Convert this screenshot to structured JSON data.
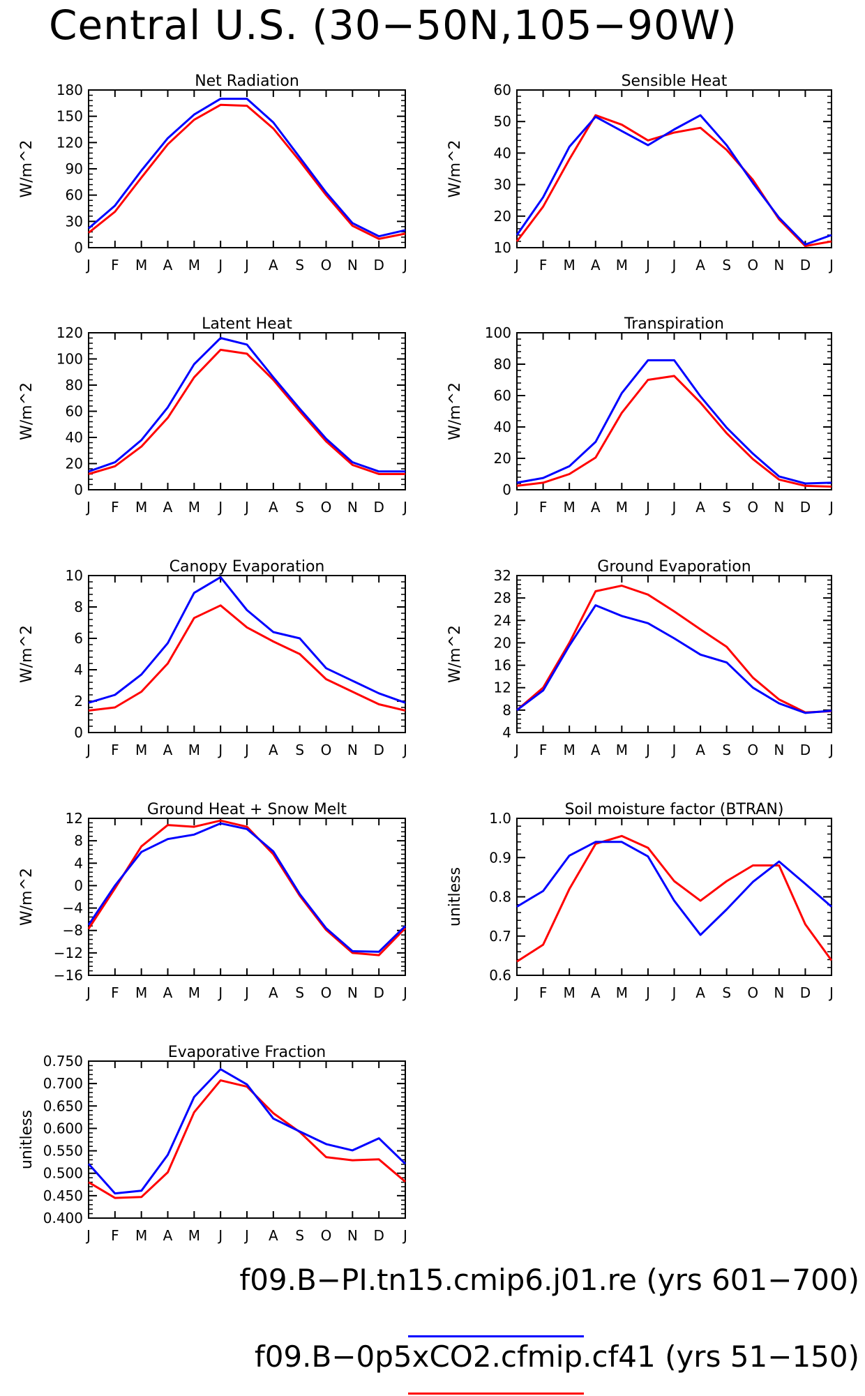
{
  "title": "Central U.S. (30−50N,105−90W)",
  "months": [
    "J",
    "F",
    "M",
    "A",
    "M",
    "J",
    "J",
    "A",
    "S",
    "O",
    "N",
    "D",
    "J"
  ],
  "colors": {
    "blue": "#0000ff",
    "red": "#ff0000"
  },
  "legend": [
    {
      "label": "f09.B−PI.tn15.cmip6.j01.re (yrs 601−700)",
      "color": "#0000ff"
    },
    {
      "label": "f09.B−0p5xCO2.cfmip.cf41 (yrs 51−150)",
      "color": "#ff0000"
    }
  ],
  "chart_data": [
    {
      "type": "line",
      "title": "Net Radiation",
      "ylabel": "W/m^2",
      "ylim": [
        0,
        180
      ],
      "yticks": [
        0,
        30,
        60,
        90,
        120,
        150,
        180
      ],
      "yticklabels": [
        "0",
        "30",
        "60",
        "90",
        "120",
        "150",
        "180"
      ],
      "x": [
        "J",
        "F",
        "M",
        "A",
        "M",
        "J",
        "J",
        "A",
        "S",
        "O",
        "N",
        "D",
        "J"
      ],
      "series": [
        {
          "color": "#0000ff",
          "values": [
            22,
            48,
            88,
            125,
            152,
            170,
            170,
            143,
            103,
            63,
            28,
            13,
            20
          ]
        },
        {
          "color": "#ff0000",
          "values": [
            17,
            41,
            80,
            118,
            146,
            163,
            162,
            136,
            99,
            60,
            25,
            10,
            16
          ]
        }
      ]
    },
    {
      "type": "line",
      "title": "Sensible Heat",
      "ylabel": "W/m^2",
      "ylim": [
        10,
        60
      ],
      "yticks": [
        10,
        20,
        30,
        40,
        50,
        60
      ],
      "yticklabels": [
        "10",
        "20",
        "30",
        "40",
        "50",
        "60"
      ],
      "x": [
        "J",
        "F",
        "M",
        "A",
        "M",
        "J",
        "J",
        "A",
        "S",
        "O",
        "N",
        "D",
        "J"
      ],
      "series": [
        {
          "color": "#0000ff",
          "values": [
            14,
            26,
            42,
            51.5,
            47,
            42.5,
            47.5,
            52,
            42.5,
            30.5,
            19.5,
            11,
            14
          ]
        },
        {
          "color": "#ff0000",
          "values": [
            12,
            23,
            38,
            52,
            49,
            44,
            46.5,
            48,
            41,
            31.5,
            19,
            10.5,
            12
          ]
        }
      ]
    },
    {
      "type": "line",
      "title": "Latent Heat",
      "ylabel": "W/m^2",
      "ylim": [
        0,
        120
      ],
      "yticks": [
        0,
        20,
        40,
        60,
        80,
        100,
        120
      ],
      "yticklabels": [
        "0",
        "20",
        "40",
        "60",
        "80",
        "100",
        "120"
      ],
      "x": [
        "J",
        "F",
        "M",
        "A",
        "M",
        "J",
        "J",
        "A",
        "S",
        "O",
        "N",
        "D",
        "J"
      ],
      "series": [
        {
          "color": "#0000ff",
          "values": [
            14,
            21,
            38,
            63,
            96,
            116,
            111,
            86,
            62,
            39,
            21,
            14,
            14
          ]
        },
        {
          "color": "#ff0000",
          "values": [
            12,
            18,
            33,
            55,
            86,
            107,
            104,
            84,
            60,
            37,
            19,
            12,
            12
          ]
        }
      ]
    },
    {
      "type": "line",
      "title": "Transpiration",
      "ylabel": "W/m^2",
      "ylim": [
        0,
        100
      ],
      "yticks": [
        0,
        20,
        40,
        60,
        80,
        100
      ],
      "yticklabels": [
        "0",
        "20",
        "40",
        "60",
        "80",
        "100"
      ],
      "x": [
        "J",
        "F",
        "M",
        "A",
        "M",
        "J",
        "J",
        "A",
        "S",
        "O",
        "N",
        "D",
        "J"
      ],
      "series": [
        {
          "color": "#0000ff",
          "values": [
            4.5,
            7.5,
            15,
            30.5,
            61.5,
            82.5,
            82.5,
            59.5,
            39.5,
            23,
            8.5,
            4,
            4.5
          ]
        },
        {
          "color": "#ff0000",
          "values": [
            2.5,
            4.5,
            10,
            20.5,
            49,
            70,
            72.5,
            55.5,
            36,
            19.5,
            6.5,
            2.5,
            2
          ]
        }
      ]
    },
    {
      "type": "line",
      "title": "Canopy Evaporation",
      "ylabel": "W/m^2",
      "ylim": [
        0,
        10
      ],
      "yticks": [
        0,
        2,
        4,
        6,
        8,
        10
      ],
      "yticklabels": [
        "0",
        "2",
        "4",
        "6",
        "8",
        "10"
      ],
      "x": [
        "J",
        "F",
        "M",
        "A",
        "M",
        "J",
        "J",
        "A",
        "S",
        "O",
        "N",
        "D",
        "J"
      ],
      "series": [
        {
          "color": "#0000ff",
          "values": [
            1.9,
            2.4,
            3.7,
            5.7,
            8.9,
            9.9,
            7.8,
            6.4,
            6.0,
            4.1,
            3.3,
            2.5,
            1.9
          ]
        },
        {
          "color": "#ff0000",
          "values": [
            1.4,
            1.6,
            2.6,
            4.4,
            7.3,
            8.1,
            6.7,
            5.8,
            5.0,
            3.4,
            2.6,
            1.8,
            1.4
          ]
        }
      ]
    },
    {
      "type": "line",
      "title": "Ground Evaporation",
      "ylabel": "W/m^2",
      "ylim": [
        4,
        32
      ],
      "yticks": [
        4,
        8,
        12,
        16,
        20,
        24,
        28,
        32
      ],
      "yticklabels": [
        "4",
        "8",
        "12",
        "16",
        "20",
        "24",
        "28",
        "32"
      ],
      "x": [
        "J",
        "F",
        "M",
        "A",
        "M",
        "J",
        "J",
        "A",
        "S",
        "O",
        "N",
        "D",
        "J"
      ],
      "series": [
        {
          "color": "#0000ff",
          "values": [
            8,
            11.5,
            19.5,
            26.7,
            24.8,
            23.5,
            20.8,
            17.9,
            16.5,
            12,
            9.2,
            7.5,
            7.9
          ]
        },
        {
          "color": "#ff0000",
          "values": [
            8,
            12,
            20,
            29.2,
            30.2,
            28.6,
            25.6,
            22.4,
            19.3,
            13.8,
            9.9,
            7.6,
            7.8
          ]
        }
      ]
    },
    {
      "type": "line",
      "title": "Ground Heat + Snow Melt",
      "ylabel": "W/m^2",
      "ylim": [
        -16,
        12
      ],
      "yticks": [
        -16,
        -12,
        -8,
        -4,
        0,
        4,
        8,
        12
      ],
      "yticklabels": [
        "−16",
        "−12",
        "−8",
        "−4",
        "0",
        "4",
        "8",
        "12"
      ],
      "x": [
        "J",
        "F",
        "M",
        "A",
        "M",
        "J",
        "J",
        "A",
        "S",
        "O",
        "N",
        "D",
        "J"
      ],
      "series": [
        {
          "color": "#0000ff",
          "values": [
            -7,
            0,
            6,
            8.3,
            9.1,
            11.1,
            10.1,
            6.1,
            -1.5,
            -7.6,
            -11.7,
            -11.8,
            -7.2
          ]
        },
        {
          "color": "#ff0000",
          "values": [
            -7.7,
            -0.5,
            7,
            10.8,
            10.5,
            11.6,
            10.5,
            5.6,
            -1.8,
            -7.9,
            -12,
            -12.4,
            -7.6
          ]
        }
      ]
    },
    {
      "type": "line",
      "title": "Soil moisture factor (BTRAN)",
      "ylabel": "unitless",
      "ylim": [
        0.6,
        1.0
      ],
      "yticks": [
        0.6,
        0.7,
        0.8,
        0.9,
        1.0
      ],
      "yticklabels": [
        "0.6",
        "0.7",
        "0.8",
        "0.9",
        "1.0"
      ],
      "x": [
        "J",
        "F",
        "M",
        "A",
        "M",
        "J",
        "J",
        "A",
        "S",
        "O",
        "N",
        "D",
        "J"
      ],
      "series": [
        {
          "color": "#0000ff",
          "values": [
            0.775,
            0.815,
            0.905,
            0.94,
            0.94,
            0.903,
            0.79,
            0.703,
            0.768,
            0.838,
            0.89,
            0.833,
            0.775
          ]
        },
        {
          "color": "#ff0000",
          "values": [
            0.635,
            0.678,
            0.82,
            0.935,
            0.955,
            0.925,
            0.84,
            0.79,
            0.84,
            0.88,
            0.88,
            0.73,
            0.638
          ]
        }
      ]
    },
    {
      "type": "line",
      "title": "Evaporative Fraction",
      "ylabel": "unitless",
      "ylim": [
        0.4,
        0.75
      ],
      "yticks": [
        0.4,
        0.45,
        0.5,
        0.55,
        0.6,
        0.65,
        0.7,
        0.75
      ],
      "yticklabels": [
        "0.400",
        "0.450",
        "0.500",
        "0.550",
        "0.600",
        "0.650",
        "0.700",
        "0.750"
      ],
      "x": [
        "J",
        "F",
        "M",
        "A",
        "M",
        "J",
        "J",
        "A",
        "S",
        "O",
        "N",
        "D",
        "J"
      ],
      "series": [
        {
          "color": "#0000ff",
          "values": [
            0.521,
            0.455,
            0.461,
            0.541,
            0.67,
            0.732,
            0.698,
            0.622,
            0.593,
            0.565,
            0.551,
            0.578,
            0.521
          ]
        },
        {
          "color": "#ff0000",
          "values": [
            0.48,
            0.445,
            0.447,
            0.502,
            0.636,
            0.707,
            0.693,
            0.634,
            0.592,
            0.536,
            0.529,
            0.531,
            0.481
          ]
        }
      ]
    }
  ]
}
